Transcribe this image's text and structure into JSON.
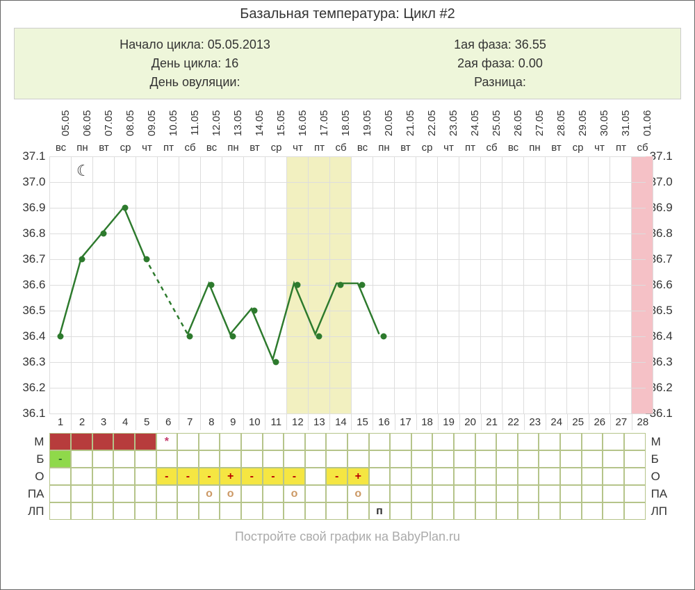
{
  "title": "Базальная температура: Цикл #2",
  "info": {
    "left": {
      "start_label": "Начало цикла: 05.05.2013",
      "day_label": "День цикла: 16",
      "ovu_label": "День овуляции:"
    },
    "right": {
      "phase1": "1ая фаза: 36.55",
      "phase2": "2ая фаза: 0.00",
      "diff": "Разница:"
    }
  },
  "footer": "Постройте свой график на BabyPlan.ru",
  "chart": {
    "type": "line",
    "days": 28,
    "dates": [
      "05.05",
      "06.05",
      "07.05",
      "08.05",
      "09.05",
      "10.05",
      "11.05",
      "12.05",
      "13.05",
      "14.05",
      "15.05",
      "16.05",
      "17.05",
      "18.05",
      "19.05",
      "20.05",
      "21.05",
      "22.05",
      "23.05",
      "24.05",
      "25.05",
      "26.05",
      "27.05",
      "28.05",
      "29.05",
      "30.05",
      "31.05",
      "01.06"
    ],
    "weekdays": [
      "вс",
      "пн",
      "вт",
      "ср",
      "чт",
      "пт",
      "сб",
      "вс",
      "пн",
      "вт",
      "ср",
      "чт",
      "пт",
      "сб",
      "вс",
      "пн",
      "вт",
      "ср",
      "чт",
      "пт",
      "сб",
      "вс",
      "пн",
      "вт",
      "ср",
      "чт",
      "пт",
      "сб"
    ],
    "y_min": 36.1,
    "y_max": 37.1,
    "y_ticks": [
      "37.1",
      "37.0",
      "36.9",
      "36.8",
      "36.7",
      "36.6",
      "36.5",
      "36.4",
      "36.3",
      "36.2",
      "36.1"
    ],
    "grid_color": "#dddddd",
    "line_color": "#2d7a2d",
    "point_color": "#2d7a2d",
    "line_width": 2.5,
    "values": [
      36.4,
      36.7,
      36.8,
      36.9,
      36.7,
      null,
      36.4,
      36.6,
      36.4,
      36.5,
      36.3,
      36.6,
      36.4,
      36.6,
      36.6,
      36.4,
      null,
      null,
      null,
      null,
      null,
      null,
      null,
      null,
      null,
      null,
      null,
      null
    ],
    "dashed_segments": [
      [
        5,
        7
      ]
    ],
    "bands": [
      {
        "from_day": 12,
        "to_day": 14,
        "color": "#f2f0c0"
      },
      {
        "from_day": 28,
        "to_day": 28,
        "color": "#f5c1c6"
      }
    ],
    "moon_day": 2
  },
  "table": {
    "row_labels": [
      "М",
      "Б",
      "О",
      "ПА",
      "ЛП"
    ],
    "rows": {
      "M": {
        "fill": [
          {
            "day": 1,
            "bg": "#b73c3c"
          },
          {
            "day": 2,
            "bg": "#b73c3c"
          },
          {
            "day": 3,
            "bg": "#b73c3c"
          },
          {
            "day": 4,
            "bg": "#b73c3c"
          },
          {
            "day": 5,
            "bg": "#b73c3c"
          },
          {
            "day": 6,
            "text": "*",
            "color": "#c23a6a"
          }
        ]
      },
      "B": {
        "fill": [
          {
            "day": 1,
            "bg": "#8fd94a",
            "text": "-",
            "color": "#2a6b2a"
          }
        ]
      },
      "O": {
        "fill": [
          {
            "day": 6,
            "bg": "#f5e642",
            "text": "-",
            "color": "#b00"
          },
          {
            "day": 7,
            "bg": "#f5e642",
            "text": "-",
            "color": "#b00"
          },
          {
            "day": 8,
            "bg": "#f5e642",
            "text": "-",
            "color": "#b00"
          },
          {
            "day": 9,
            "bg": "#f5e642",
            "text": "+",
            "color": "#b00"
          },
          {
            "day": 10,
            "bg": "#f5e642",
            "text": "-",
            "color": "#b00"
          },
          {
            "day": 11,
            "bg": "#f5e642",
            "text": "-",
            "color": "#b00"
          },
          {
            "day": 12,
            "bg": "#f5e642",
            "text": "-",
            "color": "#b00"
          },
          {
            "day": 14,
            "bg": "#f5e642",
            "text": "-",
            "color": "#b00"
          },
          {
            "day": 15,
            "bg": "#f5e642",
            "text": "+",
            "color": "#b00"
          }
        ]
      },
      "PA": {
        "fill": [
          {
            "day": 8,
            "text": "o",
            "color": "#c96"
          },
          {
            "day": 9,
            "text": "o",
            "color": "#c96"
          },
          {
            "day": 12,
            "text": "o",
            "color": "#c96"
          },
          {
            "day": 15,
            "text": "o",
            "color": "#c96"
          }
        ]
      },
      "LP": {
        "fill": [
          {
            "day": 16,
            "text": "п",
            "color": "#333"
          }
        ]
      }
    }
  },
  "colors": {
    "info_bg": "#eef6da",
    "cell_border": "#b5c48a"
  }
}
